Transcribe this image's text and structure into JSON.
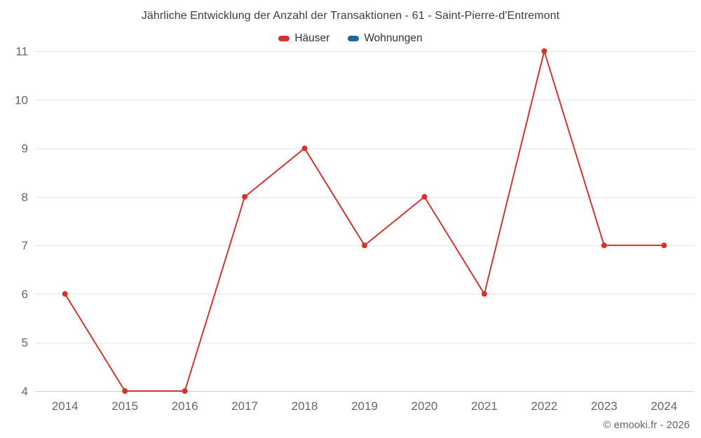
{
  "page": {
    "title": "Jährliche Entwicklung der Anzahl der Transaktionen - 61 - Saint-Pierre-d'Entremont",
    "footer": "© emooki.fr - 2026"
  },
  "legend": {
    "items": [
      {
        "label": "Häuser",
        "color": "#d2342c"
      },
      {
        "label": "Wohnungen",
        "color": "#17699e"
      }
    ]
  },
  "chart_data": {
    "type": "line",
    "title": "Jährliche Entwicklung der Anzahl der Transaktionen - 61 - Saint-Pierre-d'Entremont",
    "categories": [
      "2014",
      "2015",
      "2016",
      "2017",
      "2018",
      "2019",
      "2020",
      "2021",
      "2022",
      "2023",
      "2024"
    ],
    "series": [
      {
        "name": "Häuser",
        "color": "#d2342c",
        "values": [
          6,
          4,
          4,
          8,
          9,
          7,
          8,
          6,
          11,
          7,
          7
        ]
      },
      {
        "name": "Wohnungen",
        "color": "#17699e",
        "values": []
      }
    ],
    "xlabel": "",
    "ylabel": "",
    "ylim": [
      4,
      11
    ],
    "ytick_step": 1,
    "grid": "horizontal",
    "legend_position": "top",
    "marker": "circle",
    "colors": {
      "grid": "#e6e6e6",
      "axis_line": "#ccd3dc",
      "tick_label": "#666666",
      "title": "#3d3d3d"
    }
  }
}
